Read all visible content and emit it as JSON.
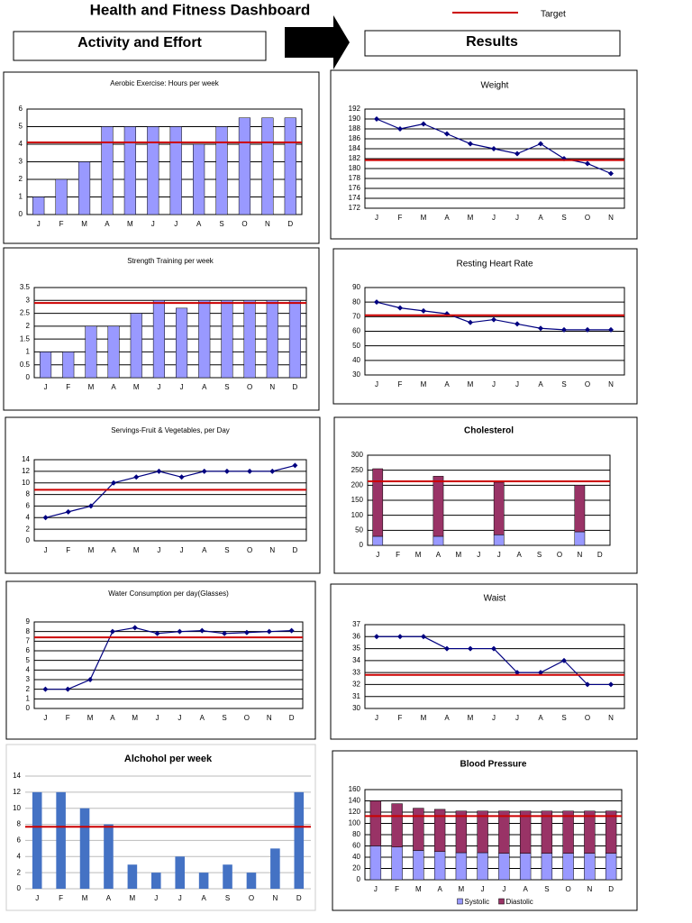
{
  "header": {
    "title": "Health and Fitness Dashboard",
    "left_label": "Activity and Effort",
    "right_label": "Results",
    "legend": {
      "label": "Target",
      "color": "#cc0000"
    }
  },
  "chart_data": [
    {
      "type": "bar",
      "title": "Aerobic Exercise: Hours per week",
      "categories": [
        "J",
        "F",
        "M",
        "A",
        "M",
        "J",
        "J",
        "A",
        "S",
        "O",
        "N",
        "D"
      ],
      "values": [
        1,
        2,
        3,
        5,
        5,
        5,
        5,
        4,
        5,
        5.5,
        5.5,
        5.5
      ],
      "color": "#9999ff",
      "ylim": [
        0,
        6
      ],
      "yticks": [
        0,
        1,
        2,
        3,
        4,
        5,
        6
      ],
      "target": 4.1,
      "grid": true
    },
    {
      "type": "bar",
      "title": "Strength  Training per week",
      "categories": [
        "J",
        "F",
        "M",
        "A",
        "M",
        "J",
        "J",
        "A",
        "S",
        "O",
        "N",
        "D"
      ],
      "values": [
        1,
        1,
        2,
        2,
        2.5,
        3,
        2.7,
        3,
        3,
        3,
        3,
        3
      ],
      "color": "#9999ff",
      "ylim": [
        0,
        3.5
      ],
      "yticks": [
        0,
        0.5,
        1,
        1.5,
        2,
        2.5,
        3,
        3.5
      ],
      "target": 2.9,
      "grid": true
    },
    {
      "type": "line",
      "title": "Servings-Fruit & Vegetables, per  Day",
      "categories": [
        "J",
        "F",
        "M",
        "A",
        "M",
        "J",
        "J",
        "A",
        "S",
        "O",
        "N",
        "D"
      ],
      "values": [
        4,
        5,
        6,
        10,
        11,
        12,
        11,
        12,
        12,
        12,
        12,
        13
      ],
      "color": "#000080",
      "ylim": [
        0,
        14
      ],
      "yticks": [
        0,
        2,
        4,
        6,
        8,
        10,
        12,
        14
      ],
      "target": 8.8,
      "grid": true
    },
    {
      "type": "line",
      "title": "Water Consumption per day(Glasses)",
      "categories": [
        "J",
        "F",
        "M",
        "A",
        "M",
        "J",
        "J",
        "A",
        "S",
        "O",
        "N",
        "D"
      ],
      "values": [
        2,
        2,
        3,
        8,
        8.4,
        7.8,
        8,
        8.1,
        7.8,
        7.9,
        8,
        8.1
      ],
      "color": "#000080",
      "ylim": [
        0,
        9
      ],
      "yticks": [
        0,
        1,
        2,
        3,
        4,
        5,
        6,
        7,
        8,
        9
      ],
      "target": 7.4,
      "grid": true
    },
    {
      "type": "bar",
      "title": "Alchohol per week",
      "categories": [
        "J",
        "F",
        "M",
        "A",
        "M",
        "J",
        "J",
        "A",
        "S",
        "O",
        "N",
        "D"
      ],
      "values": [
        12,
        12,
        10,
        8,
        3,
        2,
        4,
        2,
        3,
        2,
        5,
        12
      ],
      "color": "#4472c4",
      "ylim": [
        0,
        14
      ],
      "yticks": [
        0,
        2,
        4,
        6,
        8,
        10,
        12,
        14
      ],
      "target": 7.7,
      "grid": true
    },
    {
      "type": "line",
      "title": "Weight",
      "categories": [
        "J",
        "F",
        "M",
        "A",
        "M",
        "J",
        "J",
        "A",
        "S",
        "O",
        "N"
      ],
      "values": [
        190,
        188,
        189,
        187,
        185,
        184,
        183,
        185,
        182,
        181,
        179
      ],
      "color": "#000080",
      "ylim": [
        172,
        192
      ],
      "yticks": [
        172,
        174,
        176,
        178,
        180,
        182,
        184,
        186,
        188,
        190,
        192
      ],
      "target": 181.7,
      "grid": true
    },
    {
      "type": "line",
      "title": "Resting Heart Rate",
      "categories": [
        "J",
        "F",
        "M",
        "A",
        "M",
        "J",
        "J",
        "A",
        "S",
        "O",
        "N"
      ],
      "values": [
        80,
        76,
        74,
        72,
        66,
        68,
        65,
        62,
        61,
        61,
        61
      ],
      "color": "#000080",
      "ylim": [
        30,
        90
      ],
      "yticks": [
        30,
        40,
        50,
        60,
        70,
        80,
        90
      ],
      "target": 71,
      "grid": true
    },
    {
      "type": "bar",
      "title": "Cholesterol",
      "categories": [
        "J",
        "F",
        "M",
        "A",
        "M",
        "J",
        "J",
        "A",
        "S",
        "O",
        "N",
        "D"
      ],
      "stacked": true,
      "series": [
        {
          "color": "#9999ff",
          "values": [
            30,
            null,
            null,
            30,
            null,
            null,
            35,
            null,
            null,
            null,
            45,
            null
          ]
        },
        {
          "color": "#993366",
          "values": [
            225,
            null,
            null,
            200,
            null,
            null,
            175,
            null,
            null,
            null,
            155,
            null
          ]
        }
      ],
      "ylim": [
        0,
        300
      ],
      "yticks": [
        0,
        50,
        100,
        150,
        200,
        250,
        300
      ],
      "target": 213,
      "grid": true
    },
    {
      "type": "line",
      "title": "Waist",
      "categories": [
        "J",
        "F",
        "M",
        "A",
        "M",
        "J",
        "J",
        "A",
        "S",
        "O",
        "N"
      ],
      "values": [
        36,
        36,
        36,
        35,
        35,
        35,
        33,
        33,
        34,
        32,
        32
      ],
      "color": "#000080",
      "ylim": [
        30,
        37
      ],
      "yticks": [
        30,
        31,
        32,
        33,
        34,
        35,
        36,
        37
      ],
      "target": 32.8,
      "grid": true
    },
    {
      "type": "bar",
      "title": "Blood Pressure",
      "categories": [
        "J",
        "F",
        "M",
        "A",
        "M",
        "J",
        "J",
        "A",
        "S",
        "O",
        "N",
        "D"
      ],
      "stacked": true,
      "series": [
        {
          "name": "Systolic",
          "color": "#9999ff",
          "values": [
            60,
            58,
            52,
            50,
            48,
            48,
            47,
            47,
            47,
            47,
            47,
            47
          ]
        },
        {
          "name": "Diastolic",
          "color": "#993366",
          "values": [
            80,
            77,
            75,
            75,
            74,
            74,
            75,
            75,
            75,
            75,
            75,
            75
          ]
        }
      ],
      "ylim": [
        0,
        160
      ],
      "yticks": [
        0,
        20,
        40,
        60,
        80,
        100,
        120,
        140,
        160
      ],
      "target": 113,
      "grid": true
    }
  ]
}
